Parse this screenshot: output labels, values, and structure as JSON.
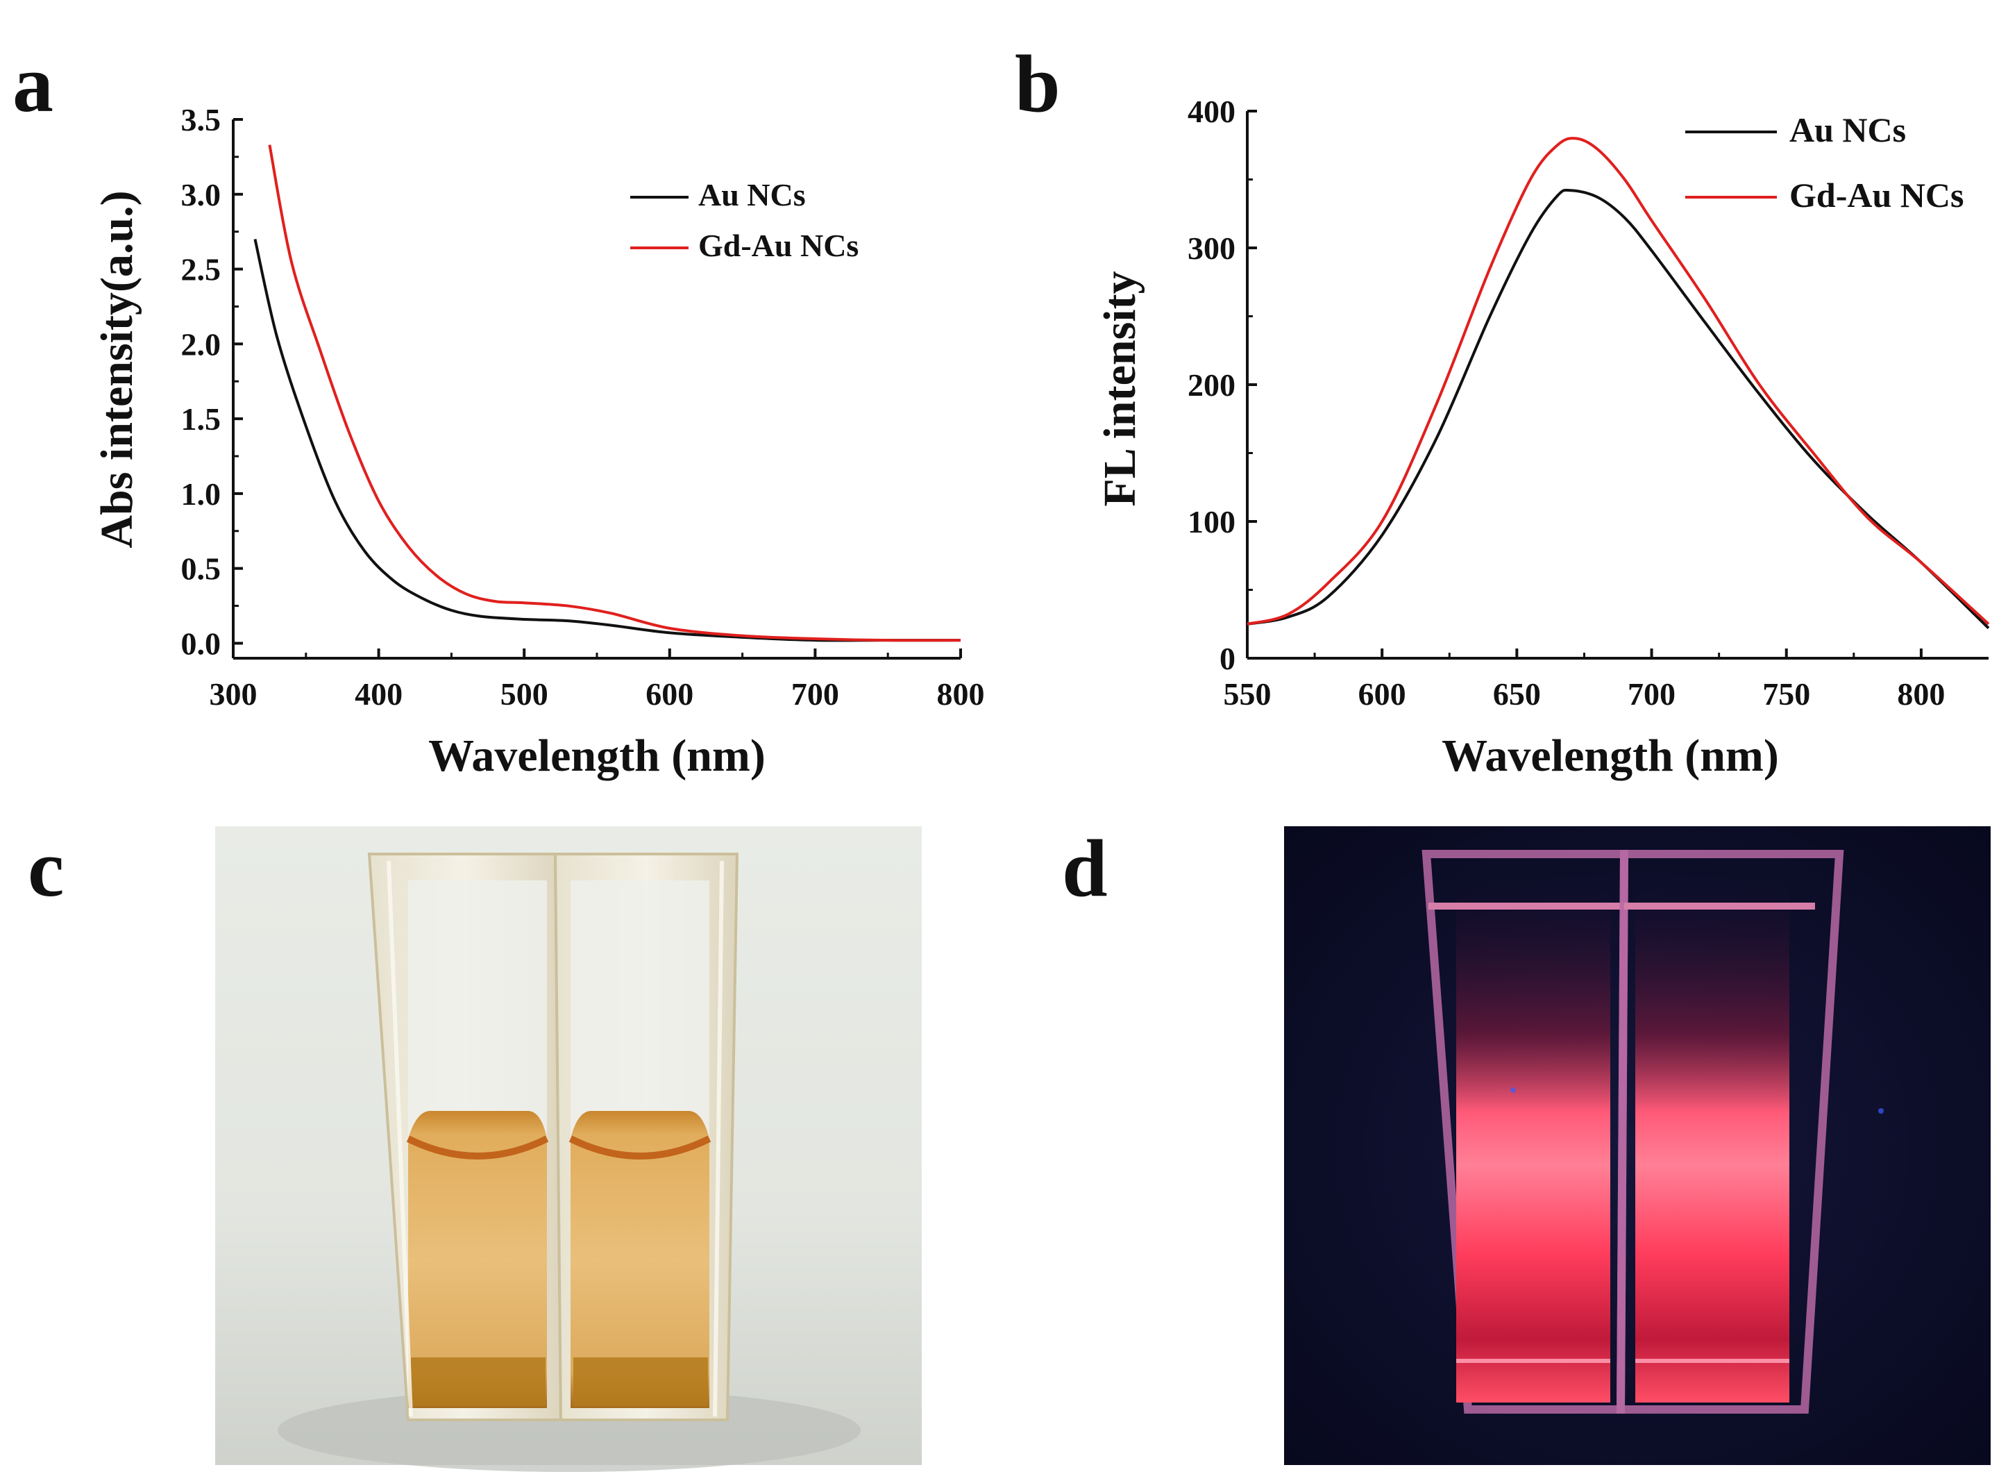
{
  "panels": {
    "a": {
      "label": "a"
    },
    "b": {
      "label": "b"
    },
    "c": {
      "label": "c",
      "description_hidden": ""
    },
    "d": {
      "label": "d"
    }
  },
  "colors": {
    "au_ncs": "#111111",
    "gd_au_ncs": "#e0201e",
    "axis": "#111111"
  },
  "chart_data": [
    {
      "id": "a",
      "type": "line",
      "title": "",
      "xlabel": "Wavelength (nm)",
      "ylabel": "Abs intensity(a.u.)",
      "xlim": [
        300,
        800
      ],
      "ylim": [
        -0.1,
        3.5
      ],
      "xticks": [
        300,
        400,
        500,
        600,
        700,
        800
      ],
      "xtick_labels": [
        "300",
        "400",
        "500",
        "600",
        "700",
        "800"
      ],
      "yticks": [
        0.0,
        0.5,
        1.0,
        1.5,
        2.0,
        2.5,
        3.0,
        3.5
      ],
      "ytick_labels": [
        "0.0",
        "0.5",
        "1.0",
        "1.5",
        "2.0",
        "2.5",
        "3.0",
        "3.5"
      ],
      "legend_position": "upper-right",
      "series": [
        {
          "name": "Au NCs",
          "x": [
            315,
            330,
            350,
            370,
            390,
            410,
            430,
            450,
            470,
            500,
            530,
            560,
            600,
            650,
            700,
            750,
            800
          ],
          "y": [
            2.7,
            2.05,
            1.45,
            0.95,
            0.62,
            0.42,
            0.3,
            0.22,
            0.18,
            0.16,
            0.15,
            0.12,
            0.07,
            0.04,
            0.02,
            0.02,
            0.02
          ]
        },
        {
          "name": "Gd-Au NCs",
          "x": [
            325,
            340,
            360,
            380,
            400,
            420,
            440,
            460,
            480,
            500,
            530,
            560,
            600,
            650,
            700,
            750,
            800
          ],
          "y": [
            3.33,
            2.55,
            1.95,
            1.4,
            0.95,
            0.65,
            0.45,
            0.33,
            0.28,
            0.27,
            0.25,
            0.2,
            0.1,
            0.05,
            0.03,
            0.02,
            0.02
          ]
        }
      ]
    },
    {
      "id": "b",
      "type": "line",
      "title": "",
      "xlabel": "Wavelength (nm)",
      "ylabel": "FL intensity",
      "xlim": [
        550,
        825
      ],
      "ylim": [
        0,
        400
      ],
      "xticks": [
        550,
        600,
        650,
        700,
        750,
        800
      ],
      "xtick_labels": [
        "550",
        "600",
        "650",
        "700",
        "750",
        "800"
      ],
      "yticks": [
        0,
        100,
        200,
        300,
        400
      ],
      "ytick_labels": [
        "0",
        "100",
        "200",
        "300",
        "400"
      ],
      "legend_position": "upper-right",
      "series": [
        {
          "name": "Au NCs",
          "x": [
            550,
            565,
            580,
            600,
            620,
            640,
            655,
            665,
            670,
            680,
            690,
            700,
            720,
            740,
            760,
            780,
            800,
            825
          ],
          "y": [
            25,
            30,
            45,
            90,
            160,
            250,
            310,
            338,
            342,
            337,
            322,
            298,
            245,
            193,
            145,
            105,
            70,
            22
          ]
        },
        {
          "name": "Gd-Au NCs",
          "x": [
            550,
            565,
            580,
            600,
            620,
            640,
            655,
            665,
            672,
            680,
            690,
            700,
            720,
            740,
            760,
            780,
            800,
            825
          ],
          "y": [
            25,
            32,
            55,
            100,
            185,
            285,
            350,
            375,
            380,
            372,
            350,
            320,
            262,
            200,
            150,
            103,
            70,
            25
          ]
        }
      ]
    }
  ]
}
